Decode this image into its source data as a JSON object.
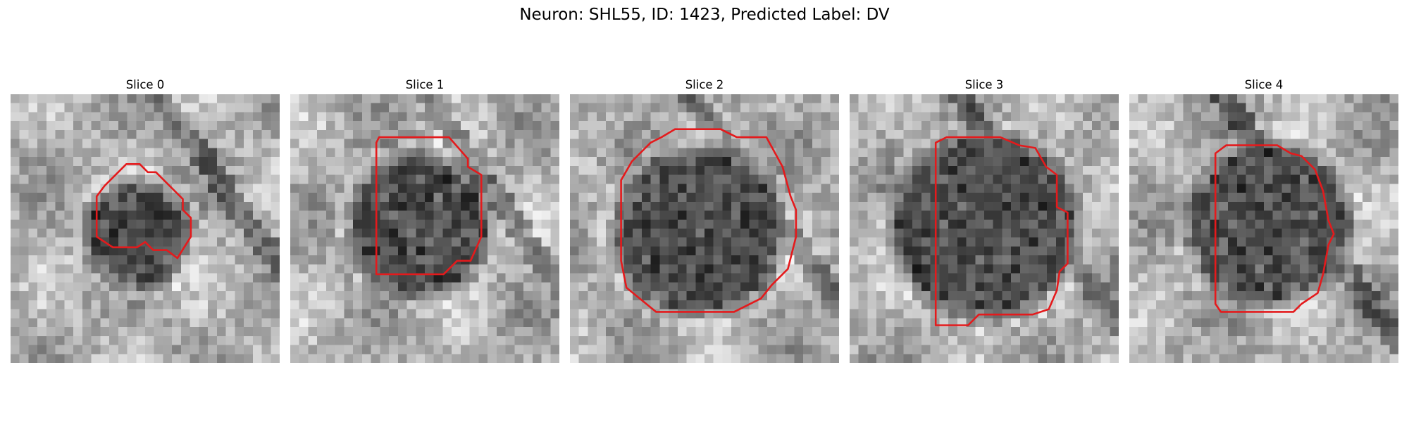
{
  "figure": {
    "title": "Neuron: SHL55, ID: 1423, Predicted Label: DV"
  },
  "colors": {
    "contour": "#e41a1c",
    "background": "#ffffff"
  },
  "panels": [
    {
      "title": "Slice 0",
      "cell_center": [
        0.47,
        0.52
      ],
      "cell_radius": 0.17,
      "contour": [
        [
          0.43,
          0.26
        ],
        [
          0.48,
          0.26
        ],
        [
          0.51,
          0.29
        ],
        [
          0.54,
          0.29
        ],
        [
          0.64,
          0.39
        ],
        [
          0.64,
          0.43
        ],
        [
          0.67,
          0.46
        ],
        [
          0.67,
          0.53
        ],
        [
          0.62,
          0.61
        ],
        [
          0.58,
          0.58
        ],
        [
          0.53,
          0.58
        ],
        [
          0.5,
          0.55
        ],
        [
          0.47,
          0.57
        ],
        [
          0.38,
          0.57
        ],
        [
          0.32,
          0.53
        ],
        [
          0.32,
          0.38
        ],
        [
          0.35,
          0.34
        ]
      ]
    },
    {
      "title": "Slice 1",
      "cell_center": [
        0.48,
        0.49
      ],
      "cell_radius": 0.24,
      "contour": [
        [
          0.33,
          0.16
        ],
        [
          0.59,
          0.16
        ],
        [
          0.66,
          0.24
        ],
        [
          0.66,
          0.27
        ],
        [
          0.71,
          0.3
        ],
        [
          0.71,
          0.53
        ],
        [
          0.67,
          0.62
        ],
        [
          0.62,
          0.62
        ],
        [
          0.57,
          0.67
        ],
        [
          0.32,
          0.67
        ],
        [
          0.32,
          0.18
        ]
      ]
    },
    {
      "title": "Slice 2",
      "cell_center": [
        0.48,
        0.51
      ],
      "cell_radius": 0.29,
      "contour": [
        [
          0.39,
          0.13
        ],
        [
          0.56,
          0.13
        ],
        [
          0.62,
          0.16
        ],
        [
          0.73,
          0.16
        ],
        [
          0.79,
          0.27
        ],
        [
          0.82,
          0.38
        ],
        [
          0.84,
          0.43
        ],
        [
          0.84,
          0.53
        ],
        [
          0.81,
          0.65
        ],
        [
          0.75,
          0.71
        ],
        [
          0.71,
          0.76
        ],
        [
          0.61,
          0.81
        ],
        [
          0.32,
          0.81
        ],
        [
          0.21,
          0.72
        ],
        [
          0.19,
          0.62
        ],
        [
          0.19,
          0.32
        ],
        [
          0.23,
          0.25
        ],
        [
          0.3,
          0.18
        ],
        [
          0.34,
          0.16
        ]
      ]
    },
    {
      "title": "Slice 3",
      "cell_center": [
        0.5,
        0.49
      ],
      "cell_radius": 0.32,
      "contour": [
        [
          0.36,
          0.16
        ],
        [
          0.56,
          0.16
        ],
        [
          0.63,
          0.19
        ],
        [
          0.69,
          0.2
        ],
        [
          0.73,
          0.27
        ],
        [
          0.77,
          0.3
        ],
        [
          0.77,
          0.42
        ],
        [
          0.81,
          0.44
        ],
        [
          0.81,
          0.63
        ],
        [
          0.78,
          0.66
        ],
        [
          0.77,
          0.73
        ],
        [
          0.74,
          0.8
        ],
        [
          0.68,
          0.82
        ],
        [
          0.48,
          0.82
        ],
        [
          0.44,
          0.86
        ],
        [
          0.32,
          0.86
        ],
        [
          0.32,
          0.18
        ]
      ]
    },
    {
      "title": "Slice 4",
      "cell_center": [
        0.52,
        0.48
      ],
      "cell_radius": 0.28,
      "contour": [
        [
          0.36,
          0.19
        ],
        [
          0.55,
          0.19
        ],
        [
          0.6,
          0.22
        ],
        [
          0.64,
          0.23
        ],
        [
          0.69,
          0.28
        ],
        [
          0.72,
          0.36
        ],
        [
          0.74,
          0.47
        ],
        [
          0.76,
          0.52
        ],
        [
          0.74,
          0.56
        ],
        [
          0.72,
          0.67
        ],
        [
          0.7,
          0.74
        ],
        [
          0.64,
          0.78
        ],
        [
          0.61,
          0.81
        ],
        [
          0.34,
          0.81
        ],
        [
          0.32,
          0.78
        ],
        [
          0.32,
          0.22
        ]
      ]
    }
  ]
}
